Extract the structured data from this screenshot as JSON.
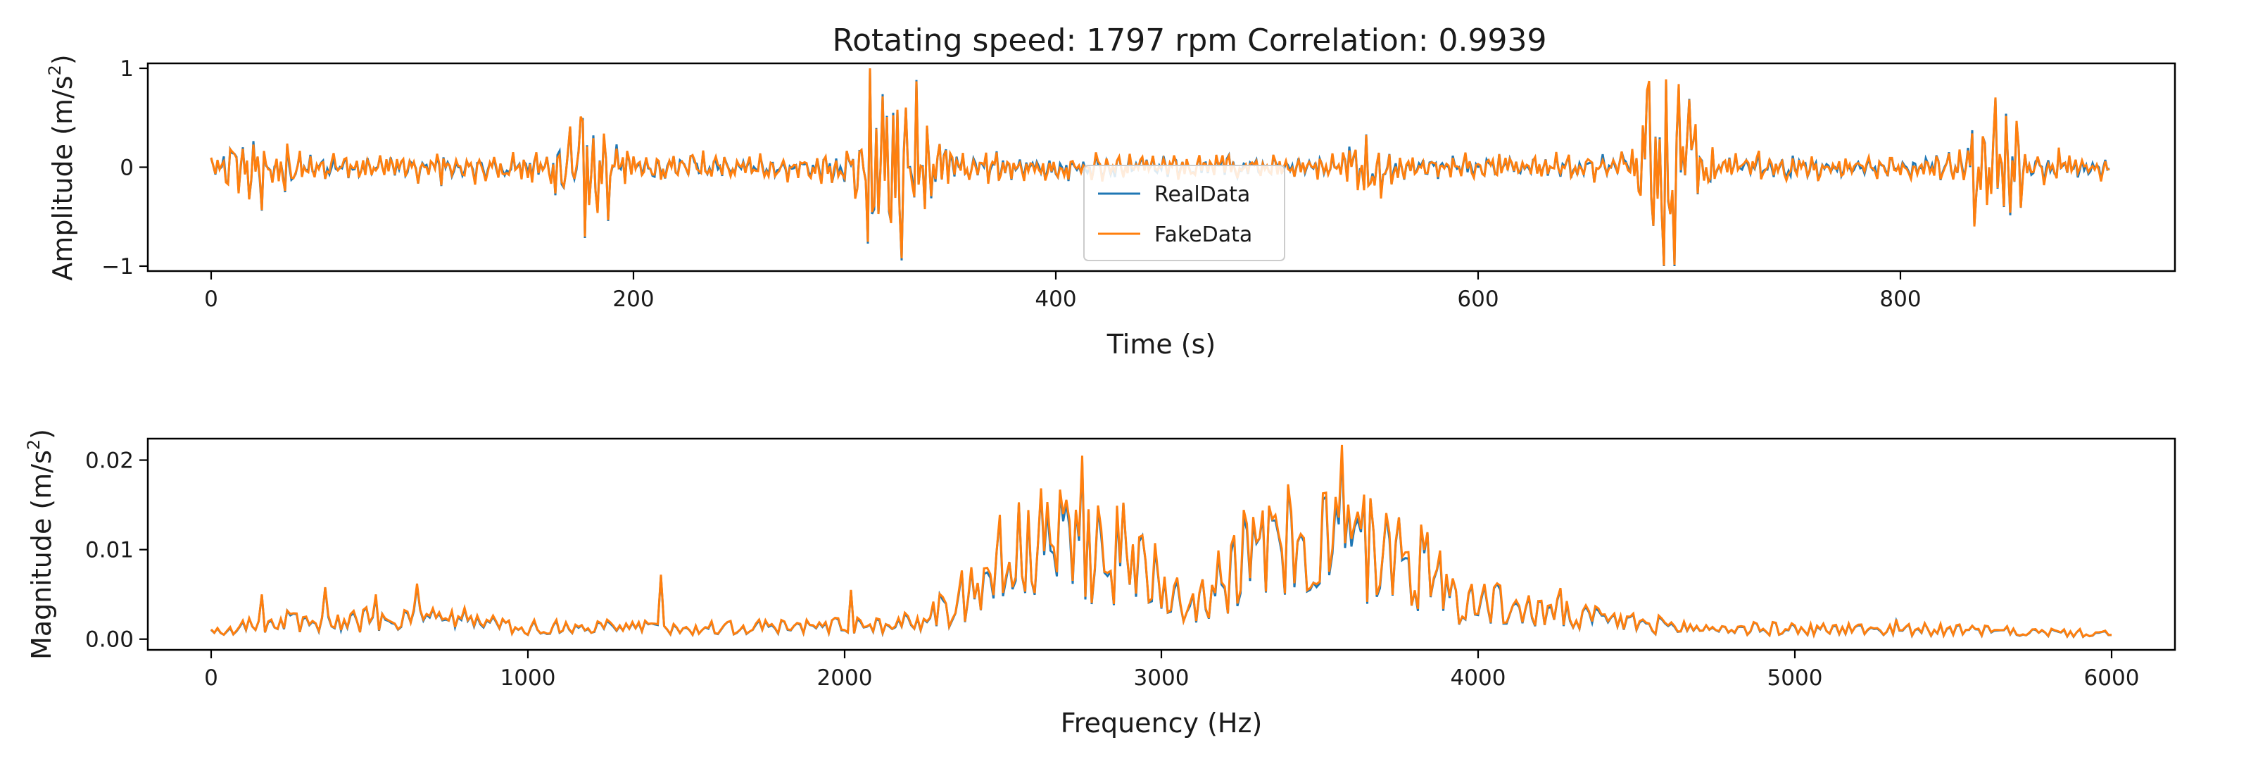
{
  "figure": {
    "title": "Rotating speed: 1797 rpm Correlation: 0.9939"
  },
  "colors": {
    "real": "#1f77b4",
    "fake": "#ff7f0e"
  },
  "chart_data": [
    {
      "type": "line",
      "name": "time-domain",
      "xlabel": "Time (s)",
      "ylabel_main": "Amplitude (m/s",
      "ylabel_sup": "2",
      "ylabel_end": ")",
      "xlim": [
        -30,
        930
      ],
      "ylim": [
        -1.05,
        1.05
      ],
      "xticks": [
        0,
        200,
        400,
        600,
        800
      ],
      "xtick_labels": [
        "0",
        "200",
        "400",
        "600",
        "800"
      ],
      "yticks": [
        -1,
        0,
        1
      ],
      "ytick_labels": [
        "−1",
        "0",
        "1"
      ],
      "legend": {
        "position": "center-bottom",
        "entries": [
          "RealData",
          "FakeData"
        ]
      },
      "n_points": 900,
      "bursts": [
        {
          "center": 20,
          "amp": 0.22,
          "width": 10
        },
        {
          "center": 180,
          "amp": 0.45,
          "width": 9
        },
        {
          "center": 318,
          "amp": 0.95,
          "width": 8
        },
        {
          "center": 335,
          "amp": 0.35,
          "width": 8
        },
        {
          "center": 548,
          "amp": 0.2,
          "width": 6
        },
        {
          "center": 690,
          "amp": 0.95,
          "width": 9
        },
        {
          "center": 845,
          "amp": 0.65,
          "width": 8
        }
      ],
      "baseline_amp": 0.1,
      "series": [
        {
          "name": "RealData",
          "color": "#1f77b4"
        },
        {
          "name": "FakeData",
          "color": "#ff7f0e"
        }
      ]
    },
    {
      "type": "line",
      "name": "frequency-domain",
      "xlabel": "Frequency (Hz)",
      "ylabel_main": "Magnitude (m/s",
      "ylabel_sup": "2",
      "ylabel_end": ")",
      "xlim": [
        -200,
        6200
      ],
      "ylim": [
        -0.0012,
        0.0224
      ],
      "xticks": [
        0,
        1000,
        2000,
        3000,
        4000,
        5000,
        6000
      ],
      "xtick_labels": [
        "0",
        "1000",
        "2000",
        "3000",
        "4000",
        "5000",
        "6000"
      ],
      "yticks": [
        0.0,
        0.01,
        0.02
      ],
      "ytick_labels": [
        "0.00",
        "0.01",
        "0.02"
      ],
      "peaks": [
        {
          "f": 160,
          "m": 0.005
        },
        {
          "f": 360,
          "m": 0.0058
        },
        {
          "f": 520,
          "m": 0.005
        },
        {
          "f": 650,
          "m": 0.0062
        },
        {
          "f": 800,
          "m": 0.0035
        },
        {
          "f": 1420,
          "m": 0.0072
        },
        {
          "f": 2020,
          "m": 0.0055
        },
        {
          "f": 2750,
          "m": 0.0205
        },
        {
          "f": 3570,
          "m": 0.0217
        },
        {
          "f": 4260,
          "m": 0.0057
        },
        {
          "f": 5320,
          "m": 0.0022
        }
      ],
      "envelope": [
        [
          0,
          0.001
        ],
        [
          300,
          0.0022
        ],
        [
          700,
          0.0022
        ],
        [
          1000,
          0.0013
        ],
        [
          1800,
          0.0014
        ],
        [
          2200,
          0.0018
        ],
        [
          2350,
          0.004
        ],
        [
          2500,
          0.0095
        ],
        [
          2750,
          0.011
        ],
        [
          2950,
          0.0085
        ],
        [
          3100,
          0.0045
        ],
        [
          3250,
          0.009
        ],
        [
          3500,
          0.0115
        ],
        [
          3800,
          0.009
        ],
        [
          3950,
          0.0045
        ],
        [
          4300,
          0.0025
        ],
        [
          4700,
          0.0012
        ],
        [
          5400,
          0.0011
        ],
        [
          6000,
          0.0006
        ]
      ],
      "n_points": 600,
      "series": [
        {
          "name": "RealData",
          "color": "#1f77b4"
        },
        {
          "name": "FakeData",
          "color": "#ff7f0e"
        }
      ]
    }
  ]
}
